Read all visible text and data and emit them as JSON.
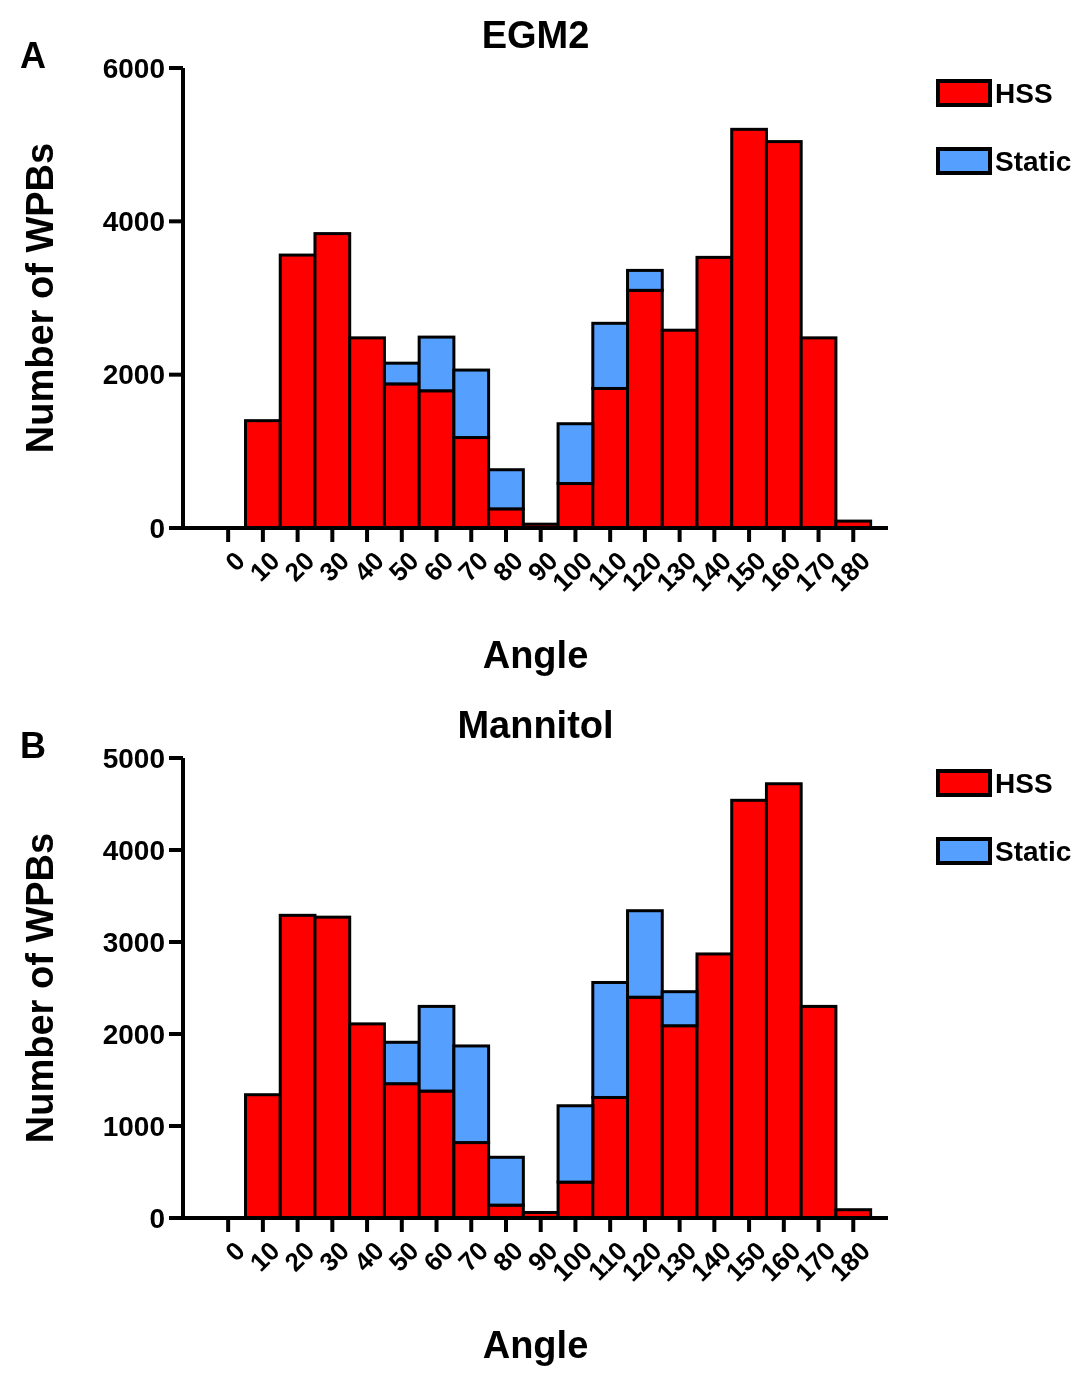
{
  "chart_data": [
    {
      "type": "bar",
      "title": "EGM2",
      "xlabel": "Angle",
      "ylabel": "Number of WPBs",
      "annotations": [
        "A"
      ],
      "stacked": true,
      "legend": "top right",
      "grid": false,
      "categories": [
        "0",
        "10",
        "20",
        "30",
        "40",
        "50",
        "60",
        "70",
        "80",
        "90",
        "100",
        "110",
        "120",
        "130",
        "140",
        "150",
        "160",
        "170",
        "180"
      ],
      "ylim": [
        0,
        6000
      ],
      "yticks": [
        0,
        2000,
        4000,
        6000
      ],
      "series": [
        {
          "name": "HSS",
          "color": "#ff0000",
          "values": [
            null,
            1400,
            3560,
            3840,
            2480,
            1880,
            1790,
            1180,
            250,
            50,
            580,
            1820,
            3100,
            2580,
            3530,
            5200,
            5040,
            2480,
            90
          ]
        },
        {
          "name": "Static",
          "color": "#559fff",
          "values": [
            null,
            null,
            null,
            null,
            null,
            270,
            700,
            880,
            510,
            null,
            780,
            850,
            260,
            null,
            null,
            null,
            null,
            null,
            null
          ]
        }
      ]
    },
    {
      "type": "bar",
      "title": "Mannitol",
      "xlabel": "Angle",
      "ylabel": "Number of WPBs",
      "annotations": [
        "B"
      ],
      "stacked": true,
      "legend": "top right",
      "grid": false,
      "categories": [
        "0",
        "10",
        "20",
        "30",
        "40",
        "50",
        "60",
        "70",
        "80",
        "90",
        "100",
        "110",
        "120",
        "130",
        "140",
        "150",
        "160",
        "170",
        "180"
      ],
      "ylim": [
        0,
        5000
      ],
      "yticks": [
        0,
        1000,
        2000,
        3000,
        4000,
        5000
      ],
      "series": [
        {
          "name": "HSS",
          "color": "#ff0000",
          "values": [
            null,
            1340,
            3290,
            3270,
            2110,
            1460,
            1380,
            820,
            140,
            60,
            390,
            1310,
            2400,
            2090,
            2870,
            4540,
            4720,
            2300,
            90
          ]
        },
        {
          "name": "Static",
          "color": "#559fff",
          "values": [
            null,
            null,
            null,
            null,
            null,
            450,
            920,
            1050,
            520,
            null,
            830,
            1250,
            940,
            370,
            null,
            null,
            null,
            null,
            null
          ]
        }
      ]
    }
  ]
}
